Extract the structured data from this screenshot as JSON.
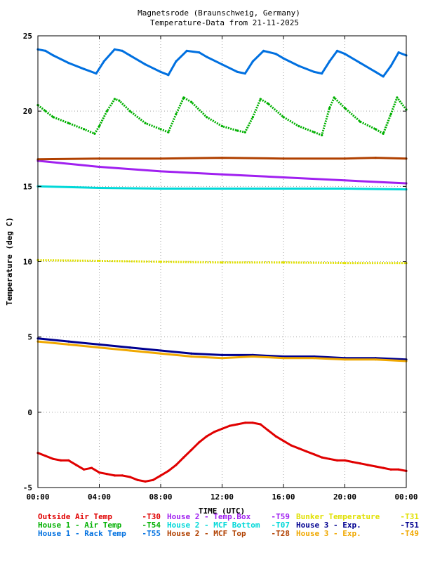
{
  "chart_data": {
    "type": "line",
    "title": "Magnetsrode (Braunschweig, Germany)",
    "subtitle": "Temperature-Data from 21-11-2025",
    "xlabel": "TIME (UTC)",
    "ylabel": "Temperature (deg C)",
    "xlim": [
      0,
      24
    ],
    "ylim": [
      -5,
      25
    ],
    "grid": true,
    "legend_position": "bottom",
    "x_tick_labels": [
      "00:00",
      "04:00",
      "08:00",
      "12:00",
      "16:00",
      "20:00",
      "00:00"
    ],
    "x_ticks": [
      0,
      4,
      8,
      12,
      16,
      20,
      24
    ],
    "y_ticks": [
      -5,
      0,
      5,
      10,
      15,
      20,
      25
    ],
    "y_tick_labels": [
      "-5",
      "0",
      "5",
      "10",
      "15",
      "20",
      "25"
    ],
    "series": [
      {
        "name": "Outside Air Temp",
        "tag": "T30",
        "color": "#e00000",
        "points": [
          [
            0,
            -2.7
          ],
          [
            0.5,
            -2.9
          ],
          [
            1,
            -3.1
          ],
          [
            1.5,
            -3.2
          ],
          [
            2,
            -3.2
          ],
          [
            2.5,
            -3.5
          ],
          [
            3,
            -3.8
          ],
          [
            3.5,
            -3.7
          ],
          [
            4,
            -4.0
          ],
          [
            4.5,
            -4.1
          ],
          [
            5,
            -4.2
          ],
          [
            5.5,
            -4.2
          ],
          [
            6,
            -4.3
          ],
          [
            6.5,
            -4.5
          ],
          [
            7,
            -4.6
          ],
          [
            7.5,
            -4.5
          ],
          [
            8,
            -4.2
          ],
          [
            8.5,
            -3.9
          ],
          [
            9,
            -3.5
          ],
          [
            9.5,
            -3.0
          ],
          [
            10,
            -2.5
          ],
          [
            10.5,
            -2.0
          ],
          [
            11,
            -1.6
          ],
          [
            11.5,
            -1.3
          ],
          [
            12,
            -1.1
          ],
          [
            12.5,
            -0.9
          ],
          [
            13,
            -0.8
          ],
          [
            13.5,
            -0.7
          ],
          [
            14,
            -0.7
          ],
          [
            14.5,
            -0.8
          ],
          [
            15,
            -1.2
          ],
          [
            15.5,
            -1.6
          ],
          [
            16,
            -1.9
          ],
          [
            16.5,
            -2.2
          ],
          [
            17,
            -2.4
          ],
          [
            17.5,
            -2.6
          ],
          [
            18,
            -2.8
          ],
          [
            18.5,
            -3.0
          ],
          [
            19,
            -3.1
          ],
          [
            19.5,
            -3.2
          ],
          [
            20,
            -3.2
          ],
          [
            20.5,
            -3.3
          ],
          [
            21,
            -3.4
          ],
          [
            21.5,
            -3.5
          ],
          [
            22,
            -3.6
          ],
          [
            22.5,
            -3.7
          ],
          [
            23,
            -3.8
          ],
          [
            23.5,
            -3.8
          ],
          [
            24,
            -3.9
          ]
        ]
      },
      {
        "name": "House 1 - Air  Temp",
        "tag": "T54",
        "color": "#00b000",
        "points": [
          [
            0,
            20.4
          ],
          [
            0.5,
            20.0
          ],
          [
            1,
            19.6
          ],
          [
            2,
            19.2
          ],
          [
            3,
            18.8
          ],
          [
            3.7,
            18.5
          ],
          [
            4,
            19.0
          ],
          [
            4.5,
            20.0
          ],
          [
            5,
            20.8
          ],
          [
            5.3,
            20.7
          ],
          [
            6,
            20.0
          ],
          [
            7,
            19.2
          ],
          [
            8,
            18.8
          ],
          [
            8.5,
            18.6
          ],
          [
            9,
            19.8
          ],
          [
            9.5,
            20.9
          ],
          [
            10,
            20.6
          ],
          [
            11,
            19.6
          ],
          [
            12,
            19.0
          ],
          [
            13,
            18.7
          ],
          [
            13.5,
            18.6
          ],
          [
            14,
            19.6
          ],
          [
            14.5,
            20.8
          ],
          [
            15,
            20.5
          ],
          [
            16,
            19.6
          ],
          [
            17,
            19.0
          ],
          [
            18,
            18.6
          ],
          [
            18.5,
            18.4
          ],
          [
            19,
            20.2
          ],
          [
            19.3,
            20.9
          ],
          [
            20,
            20.2
          ],
          [
            21,
            19.3
          ],
          [
            22,
            18.8
          ],
          [
            22.5,
            18.5
          ],
          [
            23,
            19.8
          ],
          [
            23.4,
            20.9
          ],
          [
            24,
            20.1
          ]
        ]
      },
      {
        "name": "House 1 - Rack Temp",
        "tag": "T55",
        "color": "#0070e0",
        "points": [
          [
            0,
            24.1
          ],
          [
            0.5,
            24.0
          ],
          [
            1,
            23.7
          ],
          [
            2,
            23.2
          ],
          [
            3,
            22.8
          ],
          [
            3.8,
            22.5
          ],
          [
            4.3,
            23.3
          ],
          [
            5,
            24.1
          ],
          [
            5.5,
            24.0
          ],
          [
            6,
            23.7
          ],
          [
            7,
            23.1
          ],
          [
            8,
            22.6
          ],
          [
            8.5,
            22.4
          ],
          [
            9,
            23.3
          ],
          [
            9.7,
            24.0
          ],
          [
            10.5,
            23.9
          ],
          [
            11,
            23.6
          ],
          [
            12,
            23.1
          ],
          [
            13,
            22.6
          ],
          [
            13.5,
            22.5
          ],
          [
            14,
            23.3
          ],
          [
            14.7,
            24.0
          ],
          [
            15.5,
            23.8
          ],
          [
            16,
            23.5
          ],
          [
            17,
            23.0
          ],
          [
            18,
            22.6
          ],
          [
            18.5,
            22.5
          ],
          [
            19,
            23.3
          ],
          [
            19.5,
            24.0
          ],
          [
            20,
            23.8
          ],
          [
            21,
            23.2
          ],
          [
            22,
            22.6
          ],
          [
            22.5,
            22.3
          ],
          [
            23,
            23.0
          ],
          [
            23.5,
            23.9
          ],
          [
            24,
            23.7
          ]
        ]
      },
      {
        "name": "House 2 - Temp.Box",
        "tag": "T59",
        "color": "#a020f0",
        "points": [
          [
            0,
            16.7
          ],
          [
            4,
            16.3
          ],
          [
            8,
            16.0
          ],
          [
            12,
            15.8
          ],
          [
            16,
            15.6
          ],
          [
            20,
            15.4
          ],
          [
            24,
            15.2
          ]
        ]
      },
      {
        "name": "House 2 - MCF Bottom",
        "tag": "T07",
        "color": "#00d8d8",
        "points": [
          [
            0,
            15.0
          ],
          [
            4,
            14.9
          ],
          [
            8,
            14.85
          ],
          [
            12,
            14.85
          ],
          [
            16,
            14.85
          ],
          [
            20,
            14.85
          ],
          [
            24,
            14.8
          ]
        ]
      },
      {
        "name": "House 2 - MCF Top",
        "tag": "T28",
        "color": "#b04000",
        "points": [
          [
            0,
            16.8
          ],
          [
            4,
            16.85
          ],
          [
            8,
            16.85
          ],
          [
            12,
            16.9
          ],
          [
            16,
            16.85
          ],
          [
            20,
            16.85
          ],
          [
            22,
            16.9
          ],
          [
            24,
            16.85
          ]
        ]
      },
      {
        "name": "Bunker Temperature",
        "tag": "T31",
        "color": "#e0e000",
        "points": [
          [
            0,
            10.1
          ],
          [
            4,
            10.05
          ],
          [
            8,
            10.0
          ],
          [
            12,
            9.95
          ],
          [
            16,
            9.95
          ],
          [
            20,
            9.9
          ],
          [
            24,
            9.9
          ]
        ]
      },
      {
        "name": "House 3 - Exp.",
        "tag": "T51",
        "color": "#000090",
        "points": [
          [
            0,
            4.9
          ],
          [
            2,
            4.7
          ],
          [
            4,
            4.5
          ],
          [
            6,
            4.3
          ],
          [
            8,
            4.1
          ],
          [
            10,
            3.9
          ],
          [
            12,
            3.8
          ],
          [
            14,
            3.8
          ],
          [
            16,
            3.7
          ],
          [
            18,
            3.7
          ],
          [
            20,
            3.6
          ],
          [
            22,
            3.6
          ],
          [
            24,
            3.5
          ]
        ]
      },
      {
        "name": "House 3 - Exp.",
        "tag": "T49",
        "color": "#f0a800",
        "points": [
          [
            0,
            4.7
          ],
          [
            2,
            4.5
          ],
          [
            4,
            4.3
          ],
          [
            6,
            4.1
          ],
          [
            8,
            3.9
          ],
          [
            10,
            3.7
          ],
          [
            12,
            3.6
          ],
          [
            14,
            3.7
          ],
          [
            16,
            3.6
          ],
          [
            18,
            3.6
          ],
          [
            20,
            3.5
          ],
          [
            22,
            3.5
          ],
          [
            24,
            3.4
          ]
        ]
      }
    ]
  },
  "legend_rows": [
    [
      {
        "label": "Outside Air Temp",
        "tag": "T30",
        "color": "#e00000"
      },
      {
        "label": "House 2 - Temp.Box",
        "tag": "T59",
        "color": "#a020f0"
      },
      {
        "label": "Bunker Temperature",
        "tag": "T31",
        "color": "#e0e000"
      }
    ],
    [
      {
        "label": "House 1 - Air  Temp",
        "tag": "T54",
        "color": "#00b000"
      },
      {
        "label": "House 2 - MCF Bottom",
        "tag": "T07",
        "color": "#00d8d8"
      },
      {
        "label": "House 3 - Exp.",
        "tag": "T51",
        "color": "#000090"
      }
    ],
    [
      {
        "label": "House 1 - Rack Temp",
        "tag": "T55",
        "color": "#0070e0"
      },
      {
        "label": "House 2 - MCF Top",
        "tag": "T28",
        "color": "#b04000"
      },
      {
        "label": "House 3 - Exp.",
        "tag": "T49",
        "color": "#f0a800"
      }
    ]
  ]
}
